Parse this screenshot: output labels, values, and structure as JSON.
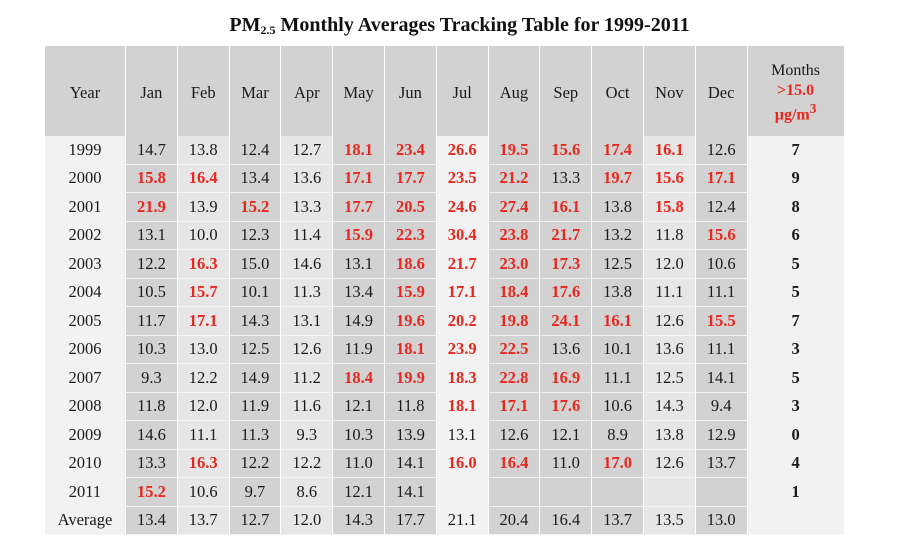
{
  "title": {
    "prefix": "PM",
    "subscript": "2.5",
    "suffix": " Monthly Averages Tracking Table for 1999-2011"
  },
  "header": {
    "year": "Year",
    "months": [
      "Jan",
      "Feb",
      "Mar",
      "Apr",
      "May",
      "Jun",
      "Jul",
      "Aug",
      "Sep",
      "Oct",
      "Nov",
      "Dec"
    ],
    "count_label": "Months",
    "count_threshold": ">15.0",
    "count_unit": "µg/m",
    "count_unit_sup": "3"
  },
  "rows": [
    {
      "year": "1999",
      "values": [
        "14.7",
        "13.8",
        "12.4",
        "12.7",
        "18.1",
        "23.4",
        "26.6",
        "19.5",
        "15.6",
        "17.4",
        "16.1",
        "12.6"
      ],
      "count": "7"
    },
    {
      "year": "2000",
      "values": [
        "15.8",
        "16.4",
        "13.4",
        "13.6",
        "17.1",
        "17.7",
        "23.5",
        "21.2",
        "13.3",
        "19.7",
        "15.6",
        "17.1"
      ],
      "count": "9"
    },
    {
      "year": "2001",
      "values": [
        "21.9",
        "13.9",
        "15.2",
        "13.3",
        "17.7",
        "20.5",
        "24.6",
        "27.4",
        "16.1",
        "13.8",
        "15.8",
        "12.4"
      ],
      "count": "8"
    },
    {
      "year": "2002",
      "values": [
        "13.1",
        "10.0",
        "12.3",
        "11.4",
        "15.9",
        "22.3",
        "30.4",
        "23.8",
        "21.7",
        "13.2",
        "11.8",
        "15.6"
      ],
      "count": "6"
    },
    {
      "year": "2003",
      "values": [
        "12.2",
        "16.3",
        "15.0",
        "14.6",
        "13.1",
        "18.6",
        "21.7",
        "23.0",
        "17.3",
        "12.5",
        "12.0",
        "10.6"
      ],
      "count": "5"
    },
    {
      "year": "2004",
      "values": [
        "10.5",
        "15.7",
        "10.1",
        "11.3",
        "13.4",
        "15.9",
        "17.1",
        "18.4",
        "17.6",
        "13.8",
        "11.1",
        "11.1"
      ],
      "count": "5"
    },
    {
      "year": "2005",
      "values": [
        "11.7",
        "17.1",
        "14.3",
        "13.1",
        "14.9",
        "19.6",
        "20.2",
        "19.8",
        "24.1",
        "16.1",
        "12.6",
        "15.5"
      ],
      "count": "7"
    },
    {
      "year": "2006",
      "values": [
        "10.3",
        "13.0",
        "12.5",
        "12.6",
        "11.9",
        "18.1",
        "23.9",
        "22.5",
        "13.6",
        "10.1",
        "13.6",
        "11.1"
      ],
      "count": "3"
    },
    {
      "year": "2007",
      "values": [
        "9.3",
        "12.2",
        "14.9",
        "11.2",
        "18.4",
        "19.9",
        "18.3",
        "22.8",
        "16.9",
        "11.1",
        "12.5",
        "14.1"
      ],
      "count": "5"
    },
    {
      "year": "2008",
      "values": [
        "11.8",
        "12.0",
        "11.9",
        "11.6",
        "12.1",
        "11.8",
        "18.1",
        "17.1",
        "17.6",
        "10.6",
        "14.3",
        "9.4"
      ],
      "count": "3"
    },
    {
      "year": "2009",
      "values": [
        "14.6",
        "11.1",
        "11.3",
        "9.3",
        "10.3",
        "13.9",
        "13.1",
        "12.6",
        "12.1",
        "8.9",
        "13.8",
        "12.9"
      ],
      "count": "0"
    },
    {
      "year": "2010",
      "values": [
        "13.3",
        "16.3",
        "12.2",
        "12.2",
        "11.0",
        "14.1",
        "16.0",
        "16.4",
        "11.0",
        "17.0",
        "12.6",
        "13.7"
      ],
      "count": "4"
    },
    {
      "year": "2011",
      "values": [
        "15.2",
        "10.6",
        "9.7",
        "8.6",
        "12.1",
        "14.1",
        "",
        "",
        "",
        "",
        "",
        ""
      ],
      "count": "1"
    }
  ],
  "average": {
    "label": "Average",
    "values": [
      "13.4",
      "13.7",
      "12.7",
      "12.0",
      "14.3",
      "17.7",
      "21.1",
      "20.4",
      "16.4",
      "13.7",
      "13.5",
      "13.0"
    ],
    "count": ""
  },
  "colors": {
    "highlight": "#e8271e",
    "header_fill": "#d2d2d2",
    "column_fill_dark": "#d2d2d2",
    "column_fill_light": "#e6e6e6",
    "column_fill_white": "#f2f2f2"
  },
  "highlight_threshold": 15.0
}
